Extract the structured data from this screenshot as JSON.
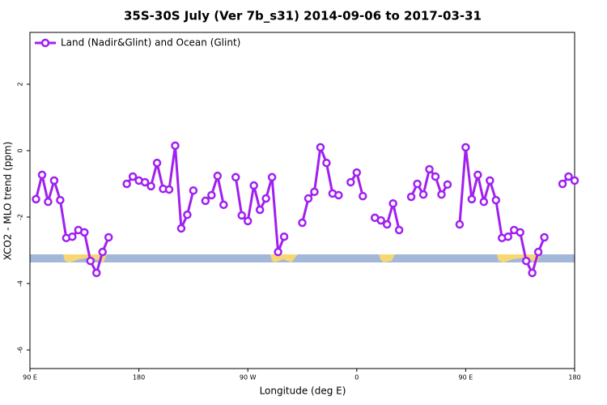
{
  "chart_data": {
    "type": "line",
    "title": "35S-30S July (Ver 7b_s31)   2014-09-06 to 2017-03-31",
    "x_label": "Longitude (deg E)",
    "y_label": "XCO2 - MLO trend (ppm)",
    "legend_position": "top-left",
    "xlim": [
      90,
      540
    ],
    "xticks": [
      {
        "value": 90,
        "label": "90 E"
      },
      {
        "value": 180,
        "label": "180"
      },
      {
        "value": 270,
        "label": "90 W"
      },
      {
        "value": 360,
        "label": "0"
      },
      {
        "value": 450,
        "label": "90 E"
      },
      {
        "value": 540,
        "label": "180"
      }
    ],
    "ylim": [
      -6.56,
      3.56
    ],
    "yticks": [
      -6,
      -4,
      -2,
      0,
      2
    ],
    "x": [
      95,
      100,
      105,
      110,
      115,
      120,
      125,
      130,
      135,
      140,
      145,
      150,
      155,
      160,
      165,
      170,
      175,
      180,
      185,
      190,
      195,
      200,
      205,
      210,
      215,
      220,
      225,
      230,
      235,
      240,
      245,
      250,
      255,
      260,
      265,
      270,
      275,
      280,
      285,
      290,
      295,
      300,
      305,
      310,
      315,
      320,
      325,
      330,
      335,
      340,
      345,
      350,
      355,
      360,
      365,
      370,
      375,
      380,
      385,
      390,
      395,
      400,
      405,
      410,
      415,
      420,
      425,
      430,
      435,
      440,
      445,
      450,
      455,
      460,
      465,
      470,
      475,
      480,
      485,
      490,
      495,
      500,
      505,
      510,
      515,
      520,
      525,
      530,
      535,
      540
    ],
    "series": [
      {
        "name": "Land (Nadir&Glint) and Ocean (Glint)",
        "color": "#a020f0",
        "values": [
          -1.46,
          -0.73,
          -1.54,
          -0.9,
          -1.49,
          -2.63,
          -2.59,
          -2.39,
          -2.46,
          -3.32,
          -3.68,
          -3.05,
          -2.61,
          null,
          null,
          -1.0,
          -0.78,
          -0.9,
          -0.95,
          -1.07,
          -0.37,
          -1.15,
          -1.17,
          0.15,
          -2.34,
          -1.93,
          -1.2,
          null,
          -1.51,
          -1.34,
          -0.76,
          -1.63,
          null,
          -0.8,
          -1.95,
          -2.12,
          -1.05,
          -1.78,
          -1.44,
          -0.8,
          -3.05,
          -2.59,
          null,
          null,
          -2.17,
          -1.44,
          -1.24,
          0.1,
          -0.37,
          -1.29,
          -1.34,
          null,
          -0.95,
          -0.66,
          -1.37,
          null,
          -2.02,
          -2.1,
          -2.22,
          -1.59,
          -2.39,
          null,
          -1.39,
          -1.0,
          -1.32,
          -0.56,
          -0.78,
          -1.32,
          -1.02,
          null,
          -2.22,
          0.1,
          -1.46,
          -0.73,
          -1.54,
          -0.9,
          -1.49,
          -2.63,
          -2.59,
          -2.39,
          -2.46,
          -3.32,
          -3.68,
          -3.05,
          -2.61,
          null,
          null,
          -1.0,
          -0.78,
          -0.9
        ]
      }
    ]
  }
}
